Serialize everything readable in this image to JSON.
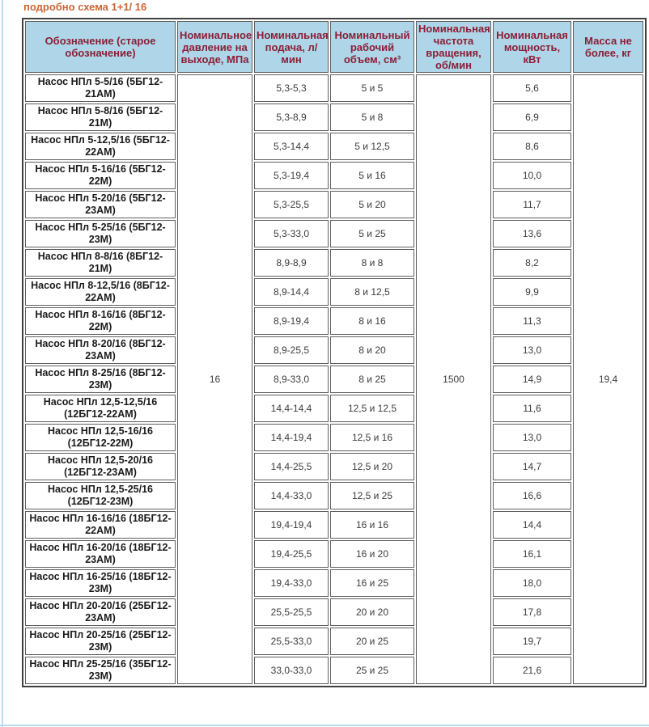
{
  "page": {
    "title": "подробно схема 1+1/ 16",
    "title_color": "#cc6633",
    "accent_color": "#b9dcea"
  },
  "table": {
    "header_bg": "#aed6e8",
    "header_text_color": "#8b1e35",
    "columns": [
      "Обозначение (старое обозначение)",
      "Номинальное давление на выходе, МПа",
      "Номинальная подача, л/ мин",
      "Номинальный рабочий объем, см³",
      "Номинальная частота вращения, об/мин",
      "Номинальная мощность, кВт",
      "Масса не более, кг"
    ],
    "merged": {
      "pressure_mpa": "16",
      "speed_rpm": "1500",
      "mass_kg": "19,4"
    },
    "rows": [
      {
        "name": "Насос НПл 5-5/16 (5БГ12-21АМ)",
        "flow": "5,3-5,3",
        "volume": "5 и 5",
        "power": "5,6"
      },
      {
        "name": "Насос НПл 5-8/16 (5БГ12-21М)",
        "flow": "5,3-8,9",
        "volume": "5 и 8",
        "power": "6,9"
      },
      {
        "name": "Насос НПл 5-12,5/16 (5БГ12-22АМ)",
        "flow": "5,3-14,4",
        "volume": "5 и 12,5",
        "power": "8,6"
      },
      {
        "name": "Насос НПл 5-16/16 (5БГ12-22М)",
        "flow": "5,3-19,4",
        "volume": "5 и 16",
        "power": "10,0"
      },
      {
        "name": "Насос НПл 5-20/16 (5БГ12-23АМ)",
        "flow": "5,3-25,5",
        "volume": "5 и 20",
        "power": "11,7"
      },
      {
        "name": "Насос НПл 5-25/16 (5БГ12-23М)",
        "flow": "5,3-33,0",
        "volume": "5 и 25",
        "power": "13,6"
      },
      {
        "name": "Насос НПл 8-8/16 (8БГ12-21М)",
        "flow": "8,9-8,9",
        "volume": "8 и 8",
        "power": "8,2"
      },
      {
        "name": "Насос НПл 8-12,5/16 (8БГ12-22АМ)",
        "flow": "8,9-14,4",
        "volume": "8 и 12,5",
        "power": "9,9"
      },
      {
        "name": "Насос НПл 8-16/16 (8БГ12-22М)",
        "flow": "8,9-19,4",
        "volume": "8 и 16",
        "power": "11,3"
      },
      {
        "name": "Насос НПл 8-20/16 (8БГ12-23АМ)",
        "flow": "8,9-25,5",
        "volume": "8 и 20",
        "power": "13,0"
      },
      {
        "name": "Насос НПл 8-25/16 (8БГ12-23М)",
        "flow": "8,9-33,0",
        "volume": "8 и 25",
        "power": "14,9"
      },
      {
        "name": "Насос НПл 12,5-12,5/16 (12БГ12-22АМ)",
        "flow": "14,4-14,4",
        "volume": "12,5 и 12,5",
        "power": "11,6"
      },
      {
        "name": "Насос НПл 12,5-16/16 (12БГ12-22М)",
        "flow": "14,4-19,4",
        "volume": "12,5 и 16",
        "power": "13,0"
      },
      {
        "name": "Насос НПл 12,5-20/16 (12БГ12-23АМ)",
        "flow": "14,4-25,5",
        "volume": "12,5 и 20",
        "power": "14,7"
      },
      {
        "name": "Насос НПл 12,5-25/16 (12БГ12-23М)",
        "flow": "14,4-33,0",
        "volume": "12,5 и 25",
        "power": "16,6"
      },
      {
        "name": "Насос НПл 16-16/16 (18БГ12-22АМ)",
        "flow": "19,4-19,4",
        "volume": "16 и 16",
        "power": "14,4"
      },
      {
        "name": "Насос НПл 16-20/16 (18БГ12-23АМ)",
        "flow": "19,4-25,5",
        "volume": "16 и 20",
        "power": "16,1"
      },
      {
        "name": "Насос НПл 16-25/16 (18БГ12-23М)",
        "flow": "19,4-33,0",
        "volume": "16 и 25",
        "power": "18,0"
      },
      {
        "name": "Насос НПл 20-20/16 (25БГ12-23АМ)",
        "flow": "25,5-25,5",
        "volume": "20 и 20",
        "power": "17,8"
      },
      {
        "name": "Насос НПл 20-25/16 (25БГ12-23М)",
        "flow": "25,5-33,0",
        "volume": "20 и 25",
        "power": "19,7"
      },
      {
        "name": "Насос НПл 25-25/16 (35БГ12-23М)",
        "flow": "33,0-33,0",
        "volume": "25 и 25",
        "power": "21,6"
      }
    ]
  }
}
